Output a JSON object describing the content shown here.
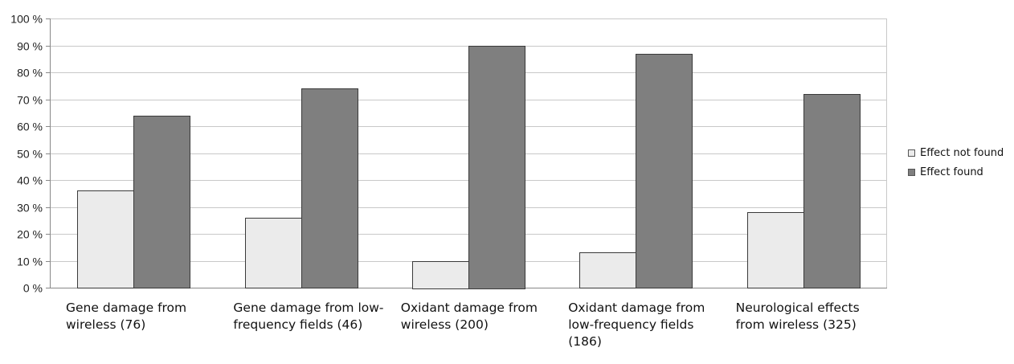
{
  "chart_data": {
    "type": "bar",
    "categories": [
      "Gene damage from wireless (76)",
      "Gene damage from low-frequency fields (46)",
      "Oxidant damage from wireless (200)",
      "Oxidant damage from low-frequency fields (186)",
      "Neurological effects from wireless (325)"
    ],
    "series": [
      {
        "name": "Effect not found",
        "color": "#ebebeb",
        "values": [
          36,
          26,
          10,
          13,
          28
        ]
      },
      {
        "name": "Effect found",
        "color": "#7f7f7f",
        "values": [
          64,
          74,
          90,
          87,
          72
        ]
      }
    ],
    "ylim": [
      0,
      100
    ],
    "yticks": [
      "0 %",
      "10 %",
      "20 %",
      "30 %",
      "40 %",
      "50 %",
      "60 %",
      "70 %",
      "80 %",
      "90 %",
      "100 %"
    ],
    "grid": true,
    "legend_position": "right"
  }
}
